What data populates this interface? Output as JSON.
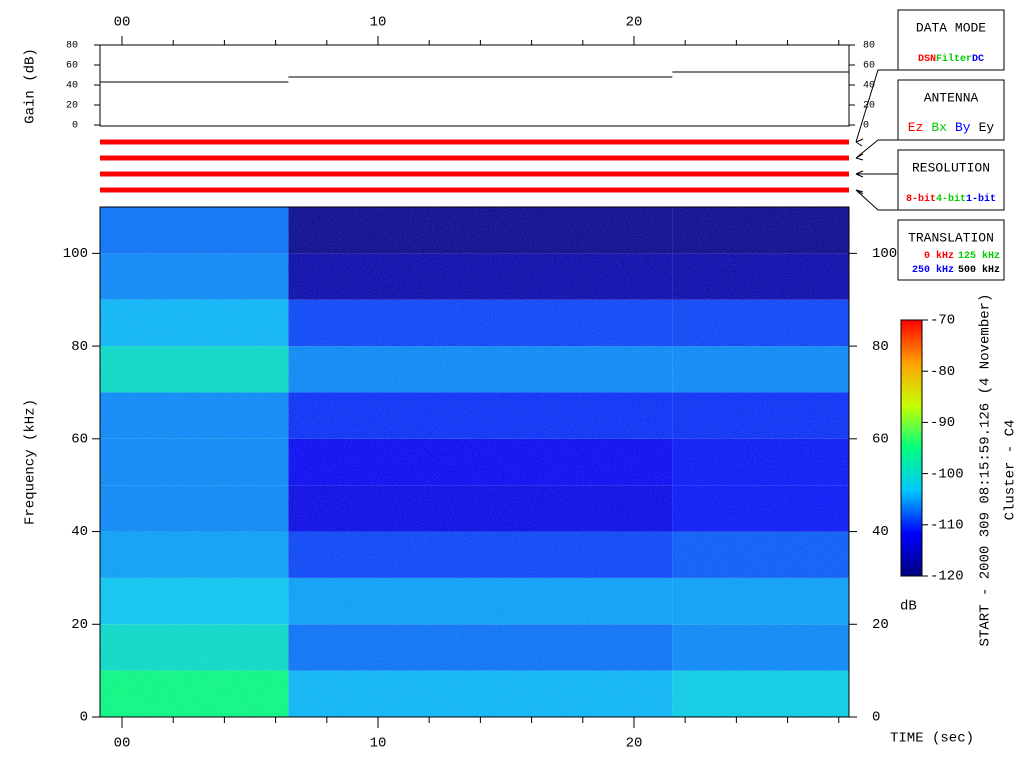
{
  "chart_data": {
    "type": "spectrogram",
    "xlabel": "TIME (sec)",
    "xlim": [
      -0.86,
      28.4
    ],
    "xticks": [
      {
        "value": 0,
        "label": "00"
      },
      10,
      20
    ],
    "xminorticks": [
      2,
      4,
      6,
      8,
      12,
      14,
      16,
      18,
      22,
      24,
      26,
      28
    ],
    "gain": {
      "ylabel": "Gain (dB)",
      "ylim": [
        0,
        80
      ],
      "yticks": [
        0,
        20,
        40,
        60,
        80
      ],
      "xbins": [
        -0.86,
        6.5,
        21.5,
        28.4
      ],
      "values": [
        43,
        48,
        53
      ],
      "color": "#000000"
    },
    "spectrogram": {
      "ylabel": "Frequency (kHz)",
      "ylim": [
        0,
        110
      ],
      "yticks": [
        0,
        20,
        40,
        60,
        80,
        100
      ],
      "xbins": [
        -0.86,
        6.5,
        21.5,
        28.4
      ],
      "ybins": [
        0,
        10,
        20,
        30,
        40,
        50,
        60,
        70,
        80,
        90,
        100,
        110
      ],
      "values": [
        [
          -95,
          -100,
          -103,
          -105,
          -106,
          -106,
          -106,
          -100,
          -104,
          -106,
          -107
        ],
        [
          -104,
          -107,
          -105,
          -109,
          -113,
          -112,
          -110,
          -106,
          -109,
          -117,
          -119
        ],
        [
          -102,
          -106,
          -105,
          -108,
          -111,
          -111,
          -110,
          -106,
          -109,
          -117,
          -119
        ]
      ]
    },
    "colorbar": {
      "label": "dB",
      "lim": [
        -120,
        -70
      ],
      "ticks": [
        -70,
        -80,
        -90,
        -100,
        -110,
        -120
      ],
      "colors": [
        "#000080",
        "#0000ff",
        "#00c8ff",
        "#00ff80",
        "#c8ff00",
        "#ffa000",
        "#ff0000"
      ]
    },
    "side_text": [
      "START - 2000 309 08:15:59.126 (4 November)",
      "Cluster - C4"
    ],
    "legend": [
      {
        "title": "DATA MODE",
        "items": [
          {
            "text": "DSN",
            "color": "#ff0000"
          },
          {
            "text": "Filter",
            "color": "#00cc00"
          },
          {
            "text": "DC",
            "color": "#0000ff"
          }
        ]
      },
      {
        "title": "ANTENNA",
        "items": [
          {
            "text": "Ez",
            "color": "#ff0000"
          },
          {
            "text": "Bx",
            "color": "#00cc00"
          },
          {
            "text": "By",
            "color": "#0000ff"
          },
          {
            "text": "Ey",
            "color": "#000000"
          }
        ]
      },
      {
        "title": "RESOLUTION",
        "items": [
          {
            "text": "8-bit",
            "color": "#ff0000"
          },
          {
            "text": "4-bit",
            "color": "#00cc00"
          },
          {
            "text": "1-bit",
            "color": "#0000ff"
          }
        ]
      },
      {
        "title": "TRANSLATION",
        "items": [
          {
            "text": "0 kHz",
            "color": "#ff0000"
          },
          {
            "text": "125 kHz",
            "color": "#00cc00"
          },
          {
            "text": "250 kHz",
            "color": "#0000ff"
          },
          {
            "text": "500 kHz",
            "color": "#000000"
          }
        ]
      }
    ]
  }
}
